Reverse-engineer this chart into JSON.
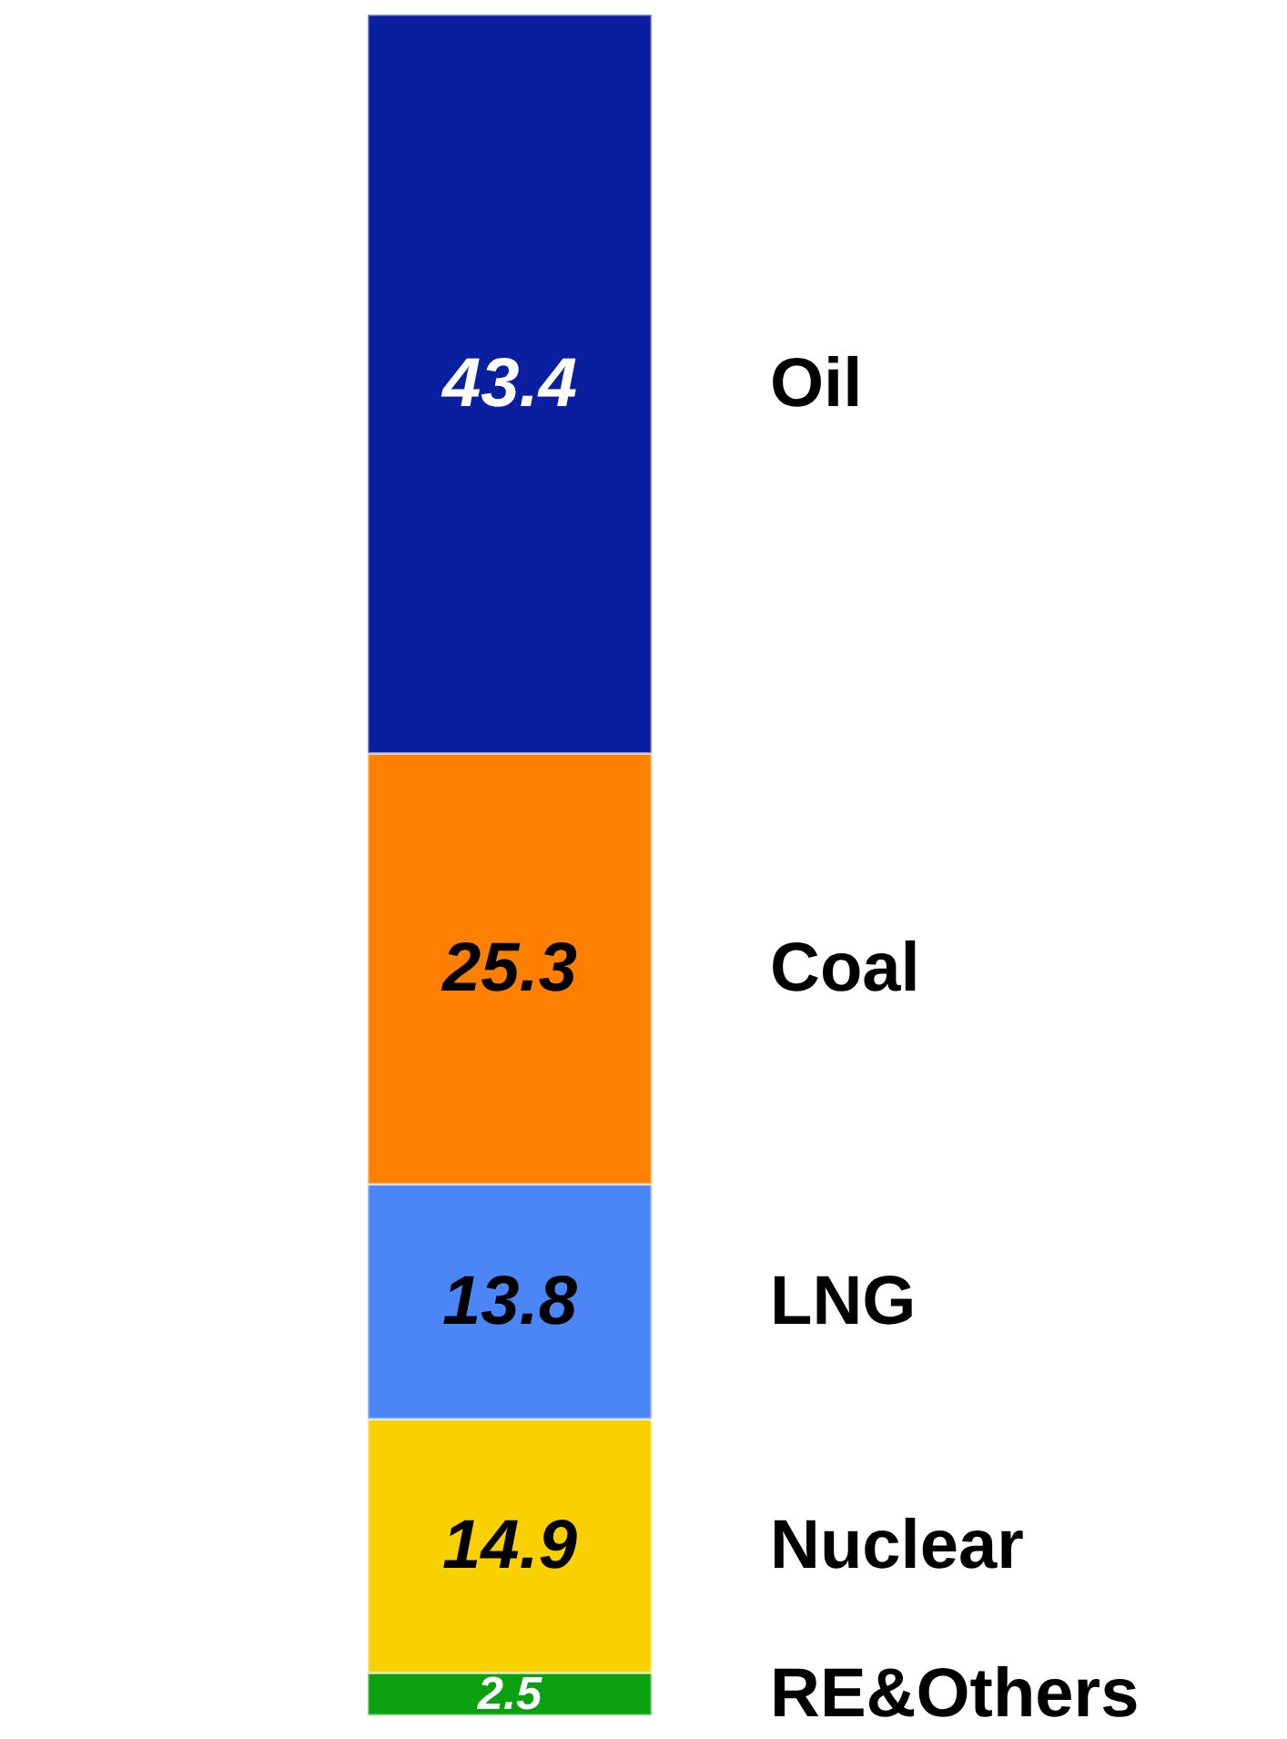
{
  "chart_data": {
    "type": "bar",
    "stacked": true,
    "categories": [
      null
    ],
    "data_labels": true,
    "legend": false,
    "series": [
      {
        "name": "RE&Others",
        "color": "#0aa010",
        "values": [
          2.5
        ]
      },
      {
        "name": "Nuclear",
        "color": "#f9d000",
        "values": [
          14.9
        ]
      },
      {
        "name": "LNG",
        "color": "#4a86f5",
        "values": [
          13.8
        ]
      },
      {
        "name": "Coal",
        "color": "#ff8000",
        "values": [
          25.3
        ]
      },
      {
        "name": "Oil",
        "color": "#0a1fa0",
        "values": [
          43.4
        ]
      }
    ]
  }
}
